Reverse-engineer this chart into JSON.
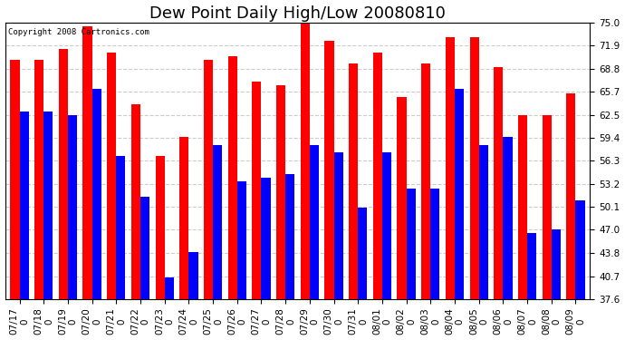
{
  "title": "Dew Point Daily High/Low 20080810",
  "copyright": "Copyright 2008 Cartronics.com",
  "dates": [
    "07/17",
    "07/18",
    "07/19",
    "07/20",
    "07/21",
    "07/22",
    "07/23",
    "07/24",
    "07/25",
    "07/26",
    "07/27",
    "07/28",
    "07/29",
    "07/30",
    "07/31",
    "08/01",
    "08/02",
    "08/03",
    "08/04",
    "08/05",
    "08/06",
    "08/07",
    "08/08",
    "08/09"
  ],
  "highs": [
    70.0,
    70.0,
    71.5,
    74.5,
    71.0,
    64.0,
    57.0,
    59.5,
    70.0,
    70.5,
    67.0,
    66.5,
    75.0,
    72.5,
    69.5,
    71.0,
    65.0,
    69.5,
    73.0,
    73.0,
    69.0,
    62.5,
    62.5,
    65.5
  ],
  "lows": [
    63.0,
    63.0,
    62.5,
    66.0,
    57.0,
    51.5,
    40.5,
    44.0,
    58.5,
    53.5,
    54.0,
    54.5,
    58.5,
    57.5,
    50.0,
    57.5,
    52.5,
    52.5,
    66.0,
    58.5,
    59.5,
    46.5,
    47.0,
    51.0
  ],
  "high_color": "#ff0000",
  "low_color": "#0000ff",
  "background_color": "#ffffff",
  "grid_color": "#cccccc",
  "yticks": [
    37.6,
    40.7,
    43.8,
    47.0,
    50.1,
    53.2,
    56.3,
    59.4,
    62.5,
    65.7,
    68.8,
    71.9,
    75.0
  ],
  "ymin": 37.6,
  "ymax": 75.0,
  "title_fontsize": 13,
  "tick_fontsize": 7.5,
  "copyright_fontsize": 6.5
}
